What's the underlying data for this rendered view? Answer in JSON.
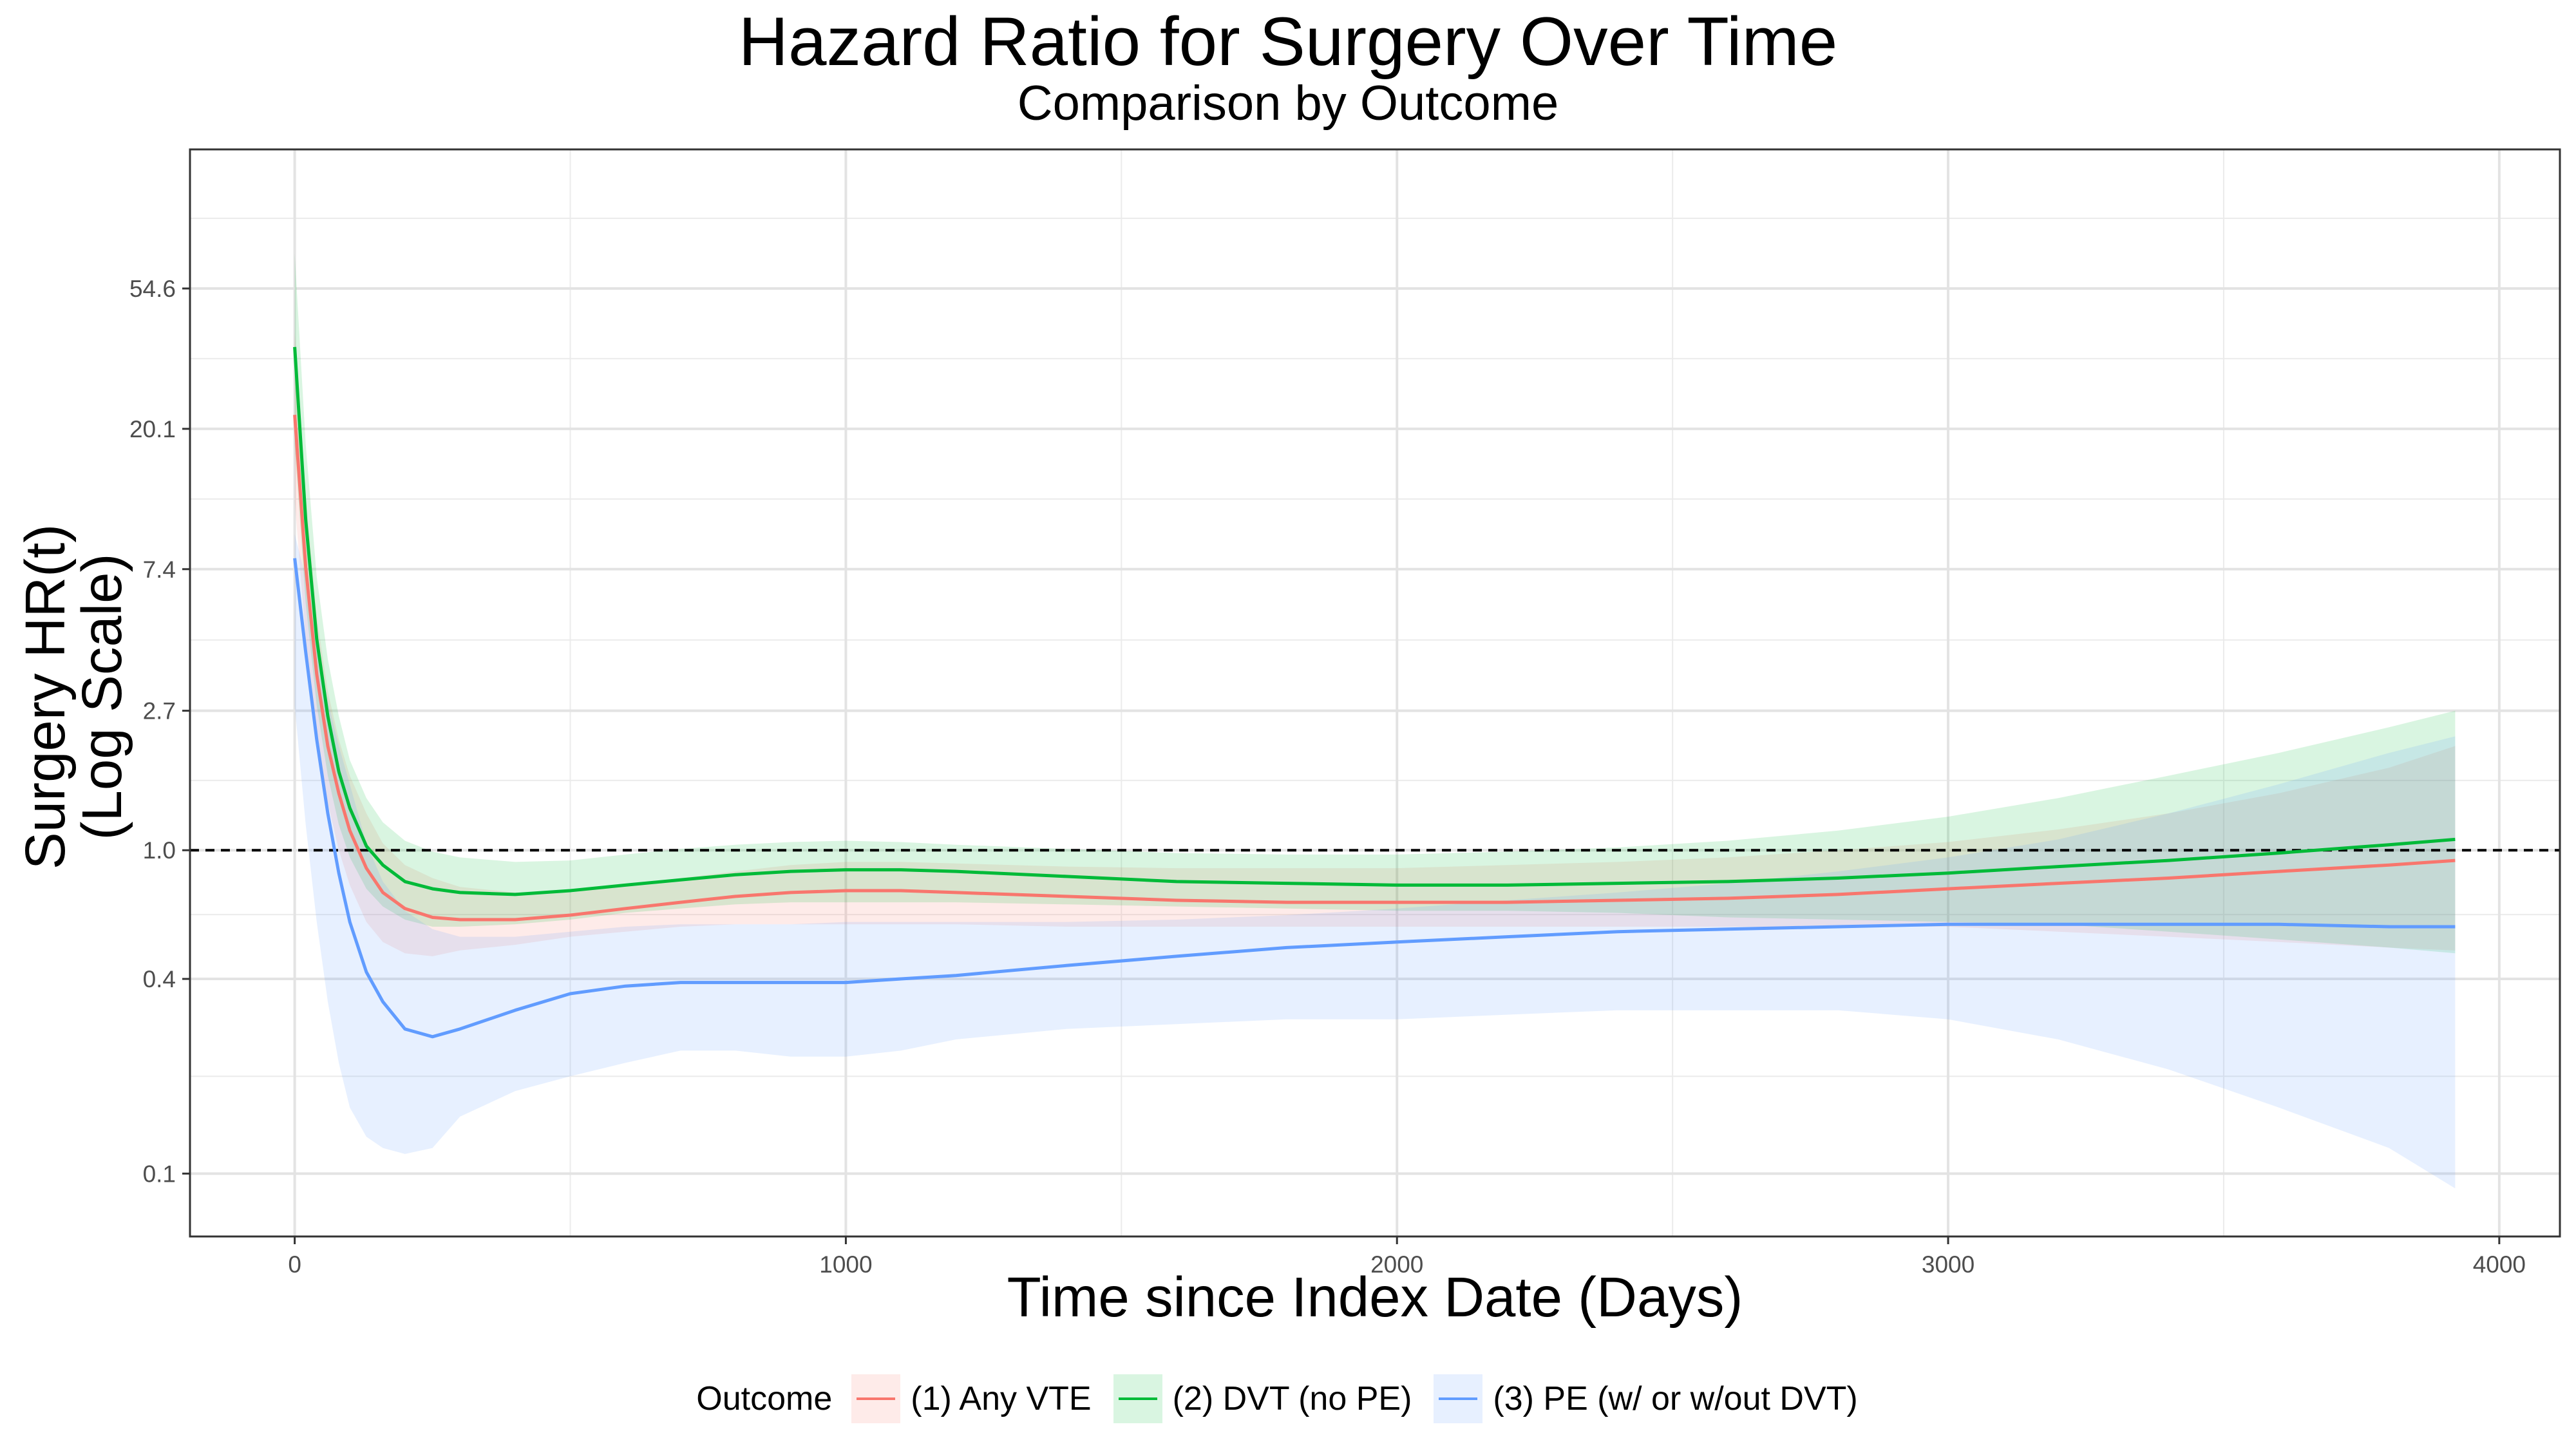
{
  "chart_data": {
    "type": "line",
    "title": "Hazard Ratio for Surgery Over Time",
    "subtitle": "Comparison by Outcome",
    "xlabel": "Time since Index Date (Days)",
    "ylabel_line1": "Surgery HR(t)",
    "ylabel_line2": "(Log Scale)",
    "y_scale": "log",
    "xlim": [
      -190,
      4110
    ],
    "ylim": [
      0.0639,
      147
    ],
    "x_ticks": [
      0,
      1000,
      2000,
      3000,
      4000
    ],
    "x_tick_labels": [
      "0",
      "1000",
      "2000",
      "3000",
      "4000"
    ],
    "y_ticks": [
      0.1,
      0.4,
      1.0,
      2.7,
      7.4,
      20.1,
      54.6
    ],
    "y_tick_labels": [
      "0.1",
      "0.4",
      "1.0",
      "2.7",
      "7.4",
      "20.1",
      "54.6"
    ],
    "reference_line": 1.0,
    "grid": true,
    "legend_position": "bottom",
    "legend_title": "Outcome",
    "series": [
      {
        "name": "(1) Any VTE",
        "color": "#F8766D",
        "x": [
          0,
          20,
          40,
          60,
          80,
          100,
          130,
          160,
          200,
          250,
          300,
          400,
          500,
          600,
          700,
          800,
          900,
          1000,
          1100,
          1200,
          1400,
          1600,
          1800,
          2000,
          2200,
          2400,
          2600,
          2800,
          3000,
          3200,
          3400,
          3600,
          3800,
          3920
        ],
        "y": [
          22.2,
          7.5,
          3.5,
          2.1,
          1.5,
          1.15,
          0.88,
          0.74,
          0.66,
          0.62,
          0.61,
          0.61,
          0.63,
          0.66,
          0.69,
          0.72,
          0.74,
          0.75,
          0.75,
          0.74,
          0.72,
          0.7,
          0.69,
          0.69,
          0.69,
          0.7,
          0.71,
          0.73,
          0.76,
          0.79,
          0.82,
          0.86,
          0.9,
          0.93
        ],
        "lower": [
          12,
          4.5,
          2.3,
          1.4,
          1.0,
          0.78,
          0.6,
          0.52,
          0.48,
          0.47,
          0.49,
          0.51,
          0.54,
          0.56,
          0.58,
          0.59,
          0.59,
          0.59,
          0.59,
          0.59,
          0.58,
          0.58,
          0.58,
          0.58,
          0.58,
          0.58,
          0.58,
          0.58,
          0.58,
          0.56,
          0.54,
          0.52,
          0.5,
          0.49
        ],
        "upper": [
          40,
          12.5,
          5.3,
          3.1,
          2.2,
          1.7,
          1.3,
          1.05,
          0.9,
          0.82,
          0.77,
          0.74,
          0.74,
          0.78,
          0.82,
          0.86,
          0.9,
          0.92,
          0.92,
          0.91,
          0.89,
          0.88,
          0.88,
          0.88,
          0.9,
          0.92,
          0.95,
          1.0,
          1.06,
          1.16,
          1.3,
          1.5,
          1.8,
          2.1
        ]
      },
      {
        "name": "(2) DVT (no PE)",
        "color": "#00BA38",
        "x": [
          0,
          20,
          40,
          60,
          80,
          100,
          130,
          160,
          200,
          250,
          300,
          400,
          500,
          600,
          700,
          800,
          900,
          1000,
          1100,
          1200,
          1400,
          1600,
          1800,
          2000,
          2200,
          2400,
          2600,
          2800,
          3000,
          3200,
          3400,
          3600,
          3800,
          3920
        ],
        "y": [
          36.0,
          10.5,
          4.5,
          2.6,
          1.75,
          1.35,
          1.03,
          0.9,
          0.8,
          0.76,
          0.74,
          0.73,
          0.75,
          0.78,
          0.81,
          0.84,
          0.86,
          0.87,
          0.87,
          0.86,
          0.83,
          0.8,
          0.79,
          0.78,
          0.78,
          0.79,
          0.8,
          0.82,
          0.85,
          0.89,
          0.93,
          0.98,
          1.04,
          1.08
        ],
        "lower": [
          18,
          5.8,
          2.8,
          1.7,
          1.2,
          0.95,
          0.76,
          0.67,
          0.61,
          0.58,
          0.58,
          0.59,
          0.61,
          0.64,
          0.66,
          0.68,
          0.69,
          0.69,
          0.69,
          0.69,
          0.68,
          0.67,
          0.66,
          0.65,
          0.65,
          0.64,
          0.62,
          0.61,
          0.6,
          0.59,
          0.56,
          0.53,
          0.5,
          0.48
        ],
        "upper": [
          70,
          18,
          7.0,
          3.9,
          2.6,
          1.9,
          1.45,
          1.22,
          1.07,
          0.99,
          0.95,
          0.92,
          0.93,
          0.97,
          1.01,
          1.04,
          1.06,
          1.07,
          1.06,
          1.04,
          1.01,
          0.98,
          0.97,
          0.97,
          0.99,
          1.02,
          1.07,
          1.15,
          1.27,
          1.45,
          1.7,
          2.0,
          2.4,
          2.7
        ]
      },
      {
        "name": "(3) PE (w/ or w/out DVT)",
        "color": "#619CFF",
        "x": [
          0,
          20,
          40,
          60,
          80,
          100,
          130,
          160,
          200,
          250,
          300,
          400,
          500,
          600,
          700,
          800,
          900,
          1000,
          1100,
          1200,
          1400,
          1600,
          1800,
          2000,
          2200,
          2400,
          2600,
          2800,
          3000,
          3200,
          3400,
          3600,
          3800,
          3920
        ],
        "y": [
          8.0,
          4.1,
          2.2,
          1.3,
          0.85,
          0.6,
          0.42,
          0.34,
          0.28,
          0.265,
          0.28,
          0.32,
          0.36,
          0.38,
          0.39,
          0.39,
          0.39,
          0.39,
          0.4,
          0.41,
          0.44,
          0.47,
          0.5,
          0.52,
          0.54,
          0.56,
          0.57,
          0.58,
          0.59,
          0.59,
          0.59,
          0.59,
          0.58,
          0.58
        ],
        "lower": [
          2.8,
          1.2,
          0.6,
          0.34,
          0.22,
          0.16,
          0.13,
          0.12,
          0.115,
          0.12,
          0.15,
          0.18,
          0.2,
          0.22,
          0.24,
          0.24,
          0.23,
          0.23,
          0.24,
          0.26,
          0.28,
          0.29,
          0.3,
          0.3,
          0.31,
          0.32,
          0.32,
          0.32,
          0.3,
          0.26,
          0.21,
          0.16,
          0.12,
          0.09
        ],
        "upper": [
          9.5,
          7.0,
          4.4,
          2.9,
          2.1,
          1.6,
          1.05,
          0.8,
          0.65,
          0.57,
          0.54,
          0.54,
          0.56,
          0.58,
          0.59,
          0.59,
          0.59,
          0.6,
          0.6,
          0.6,
          0.6,
          0.61,
          0.63,
          0.66,
          0.7,
          0.74,
          0.79,
          0.86,
          0.95,
          1.08,
          1.3,
          1.6,
          2.0,
          2.25
        ]
      }
    ]
  }
}
